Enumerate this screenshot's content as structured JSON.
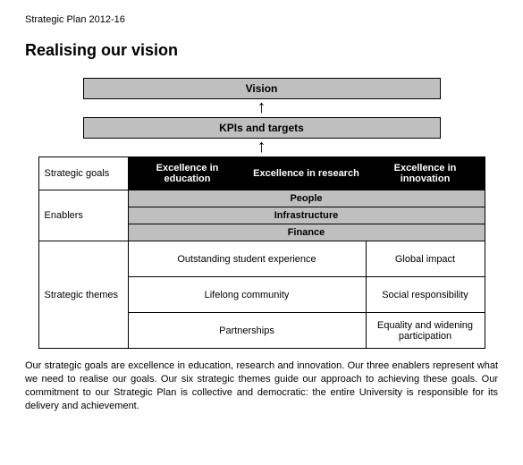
{
  "doc": {
    "header": "Strategic Plan 2012-16",
    "title": "Realising our vision"
  },
  "colors": {
    "band_bg": "#bfbfbf",
    "header_bg": "#000000",
    "header_fg": "#ffffff",
    "page_bg": "#ffffff",
    "border": "#000000"
  },
  "stack": {
    "vision": "Vision",
    "kpis": "KPIs and targets",
    "arrow_glyph": "↑"
  },
  "table": {
    "row_labels": {
      "goals": "Strategic goals",
      "enablers": "Enablers",
      "themes": "Strategic themes"
    },
    "goals": [
      "Excellence in education",
      "Excellence in research",
      "Excellence in innovation"
    ],
    "enablers": [
      "People",
      "Infrastructure",
      "Finance"
    ],
    "themes": [
      [
        "Outstanding student experience",
        "Global impact"
      ],
      [
        "Lifelong community",
        "Social responsibility"
      ],
      [
        "Partnerships",
        "Equality and widening participation"
      ]
    ]
  },
  "footer": "Our strategic goals are excellence in education, research and innovation. Our three enablers represent what we need to realise our goals. Our six strategic themes guide our approach to achieving these goals. Our commitment to our Strategic Plan is collective and democratic: the entire University is responsible for its delivery and achievement."
}
